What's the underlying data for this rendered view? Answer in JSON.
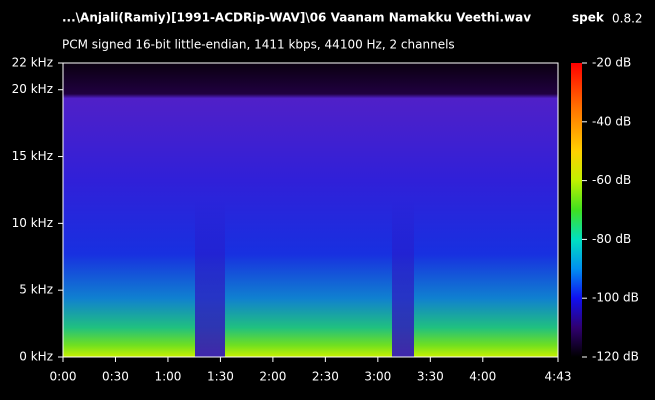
{
  "chart_data": {
    "type": "spectrogram",
    "title": "...\\Anjali(Ramiy)[1991-ACDRip-WAV]\\06 Vaanam Namakku Veethi.wav",
    "app_name": "spek",
    "app_version": "0.8.2",
    "subtitle": "PCM signed 16-bit little-endian, 1411 kbps, 44100 Hz, 2 channels",
    "xlim": [
      0,
      283
    ],
    "xticks": [
      {
        "value": 0,
        "label": "0:00"
      },
      {
        "value": 30,
        "label": "0:30"
      },
      {
        "value": 60,
        "label": "1:00"
      },
      {
        "value": 90,
        "label": "1:30"
      },
      {
        "value": 120,
        "label": "2:00"
      },
      {
        "value": 150,
        "label": "2:30"
      },
      {
        "value": 180,
        "label": "3:00"
      },
      {
        "value": 210,
        "label": "3:30"
      },
      {
        "value": 240,
        "label": "4:00"
      },
      {
        "value": 283,
        "label": "4:43"
      }
    ],
    "ylim": [
      0,
      22
    ],
    "yticks": [
      {
        "value": 0,
        "label": "0 kHz"
      },
      {
        "value": 5,
        "label": "5 kHz"
      },
      {
        "value": 10,
        "label": "10 kHz"
      },
      {
        "value": 15,
        "label": "15 kHz"
      },
      {
        "value": 20,
        "label": "20 kHz"
      },
      {
        "value": 22,
        "label": "22 kHz"
      }
    ],
    "colorbar_lim": [
      -120,
      -20
    ],
    "colorbar_ticks": [
      {
        "value": -20,
        "label": "-20 dB"
      },
      {
        "value": -40,
        "label": "-40 dB"
      },
      {
        "value": -60,
        "label": "-60 dB"
      },
      {
        "value": -80,
        "label": "-80 dB"
      },
      {
        "value": -100,
        "label": "-100 dB"
      },
      {
        "value": -120,
        "label": "-120 dB"
      }
    ]
  }
}
